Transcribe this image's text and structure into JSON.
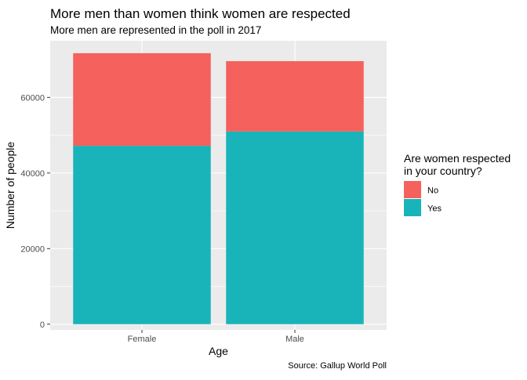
{
  "chart_data": {
    "type": "bar",
    "stacked": true,
    "title": "More men than women think women are respected",
    "subtitle": "More men are represented in the poll in 2017",
    "xlabel": "Age",
    "ylabel": "Number of people",
    "caption": "Source: Gallup World Poll",
    "categories": [
      "Female",
      "Male"
    ],
    "series": [
      {
        "name": "Yes",
        "color": "#19b4ba",
        "values": [
          47200,
          51000
        ]
      },
      {
        "name": "No",
        "color": "#f5615c",
        "values": [
          24500,
          18600
        ]
      }
    ],
    "ylim": [
      -1500,
      75000
    ],
    "yticks": [
      0,
      20000,
      40000,
      60000
    ],
    "ytick_labels": [
      "0",
      "20000",
      "40000",
      "60000"
    ],
    "grid": true,
    "legend": {
      "title_line1": "Are women respected",
      "title_line2": "in your country?",
      "position": "right",
      "entries": [
        {
          "label": "No",
          "color": "#f5615c"
        },
        {
          "label": "Yes",
          "color": "#19b4ba"
        }
      ]
    },
    "panel_background": "#ebebeb"
  }
}
